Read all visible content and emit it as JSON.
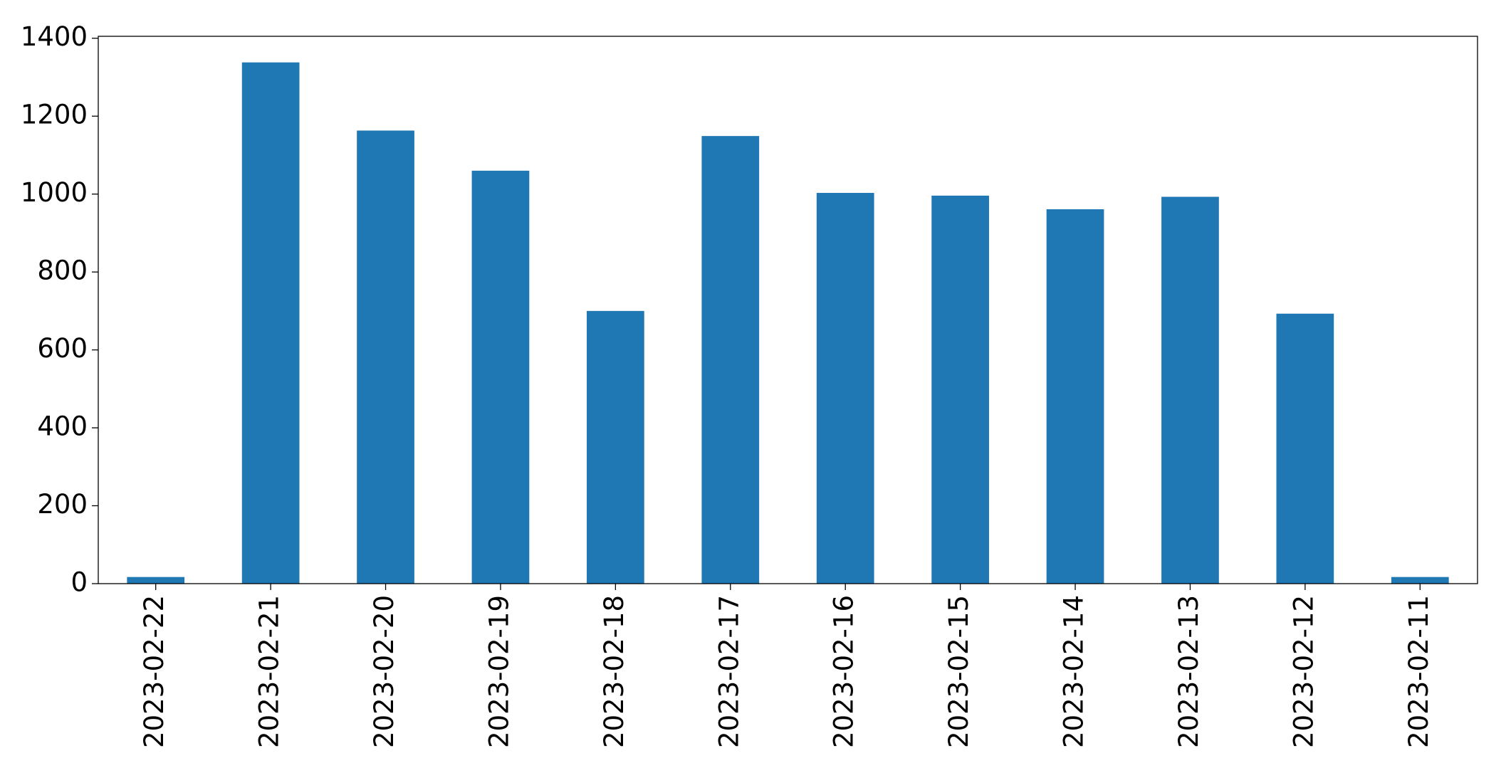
{
  "chart_data": {
    "type": "bar",
    "categories": [
      "2023-02-22",
      "2023-02-21",
      "2023-02-20",
      "2023-02-19",
      "2023-02-18",
      "2023-02-17",
      "2023-02-16",
      "2023-02-15",
      "2023-02-14",
      "2023-02-13",
      "2023-02-12",
      "2023-02-11"
    ],
    "values": [
      17,
      1338,
      1163,
      1060,
      700,
      1149,
      1003,
      996,
      961,
      993,
      693,
      17
    ],
    "color": "#1f77b4",
    "ylim": [
      0,
      1405
    ],
    "yticks": [
      0,
      200,
      400,
      600,
      800,
      1000,
      1200,
      1400
    ],
    "grid": false
  }
}
